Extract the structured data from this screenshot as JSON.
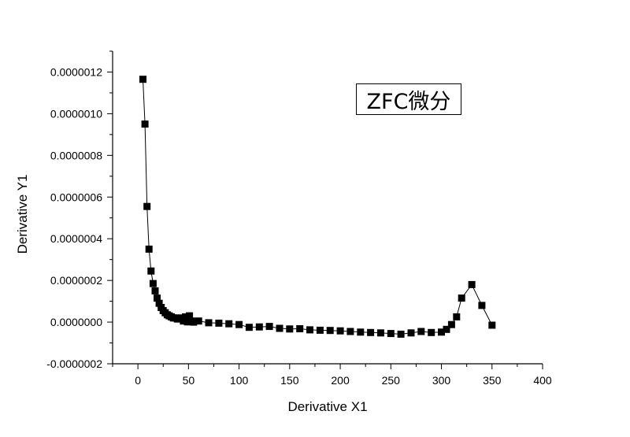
{
  "chart_data": {
    "type": "scatter",
    "title": "",
    "xlabel": "Derivative X1",
    "ylabel": "Derivative Y1",
    "xlim": [
      -25,
      400
    ],
    "ylim": [
      -2e-07,
      1.3e-06
    ],
    "grid": false,
    "x_ticks": [
      0,
      50,
      100,
      150,
      200,
      250,
      300,
      350,
      400
    ],
    "x_tick_labels": [
      "0",
      "50",
      "100",
      "150",
      "200",
      "250",
      "300",
      "350",
      "400"
    ],
    "y_ticks": [
      -2e-07,
      0,
      2e-07,
      4e-07,
      6e-07,
      8e-07,
      1e-06,
      1.2e-06
    ],
    "y_tick_labels": [
      "-0.0000002",
      "0.0000000",
      "0.0000002",
      "0.0000004",
      "0.0000006",
      "0.0000008",
      "0.0000010",
      "0.0000012"
    ],
    "annotation": "ZFC微分",
    "series": [
      {
        "marker": "square",
        "connected": true,
        "color": "#000000",
        "x": [
          5,
          7,
          9,
          11,
          13,
          15,
          17,
          19,
          21,
          23,
          25,
          27,
          29,
          31,
          33,
          35,
          37,
          39,
          41,
          43,
          45,
          47,
          49,
          51,
          53,
          55,
          60,
          70,
          80,
          90,
          100,
          110,
          120,
          130,
          140,
          150,
          160,
          170,
          180,
          190,
          200,
          210,
          220,
          230,
          240,
          250,
          260,
          270,
          280,
          290,
          300,
          305,
          310,
          315,
          320,
          330,
          340,
          350
        ],
        "y": [
          1.165e-06,
          9.5e-07,
          5.55e-07,
          3.5e-07,
          2.45e-07,
          1.85e-07,
          1.5e-07,
          1.15e-07,
          9e-08,
          7e-08,
          5.5e-08,
          4.5e-08,
          3.5e-08,
          3e-08,
          2.5e-08,
          2e-08,
          2e-08,
          1.5e-08,
          1.5e-08,
          2e-08,
          5e-09,
          2.5e-08,
          1e-09,
          3e-08,
          5e-09,
          0,
          5e-09,
          -3e-09,
          -5e-09,
          -8e-09,
          -1.2e-08,
          -2.5e-08,
          -2.3e-08,
          -2.1e-08,
          -3e-08,
          -3.3e-08,
          -3.2e-08,
          -3.7e-08,
          -3.9e-08,
          -4e-08,
          -4.2e-08,
          -4.5e-08,
          -4.8e-08,
          -5e-08,
          -5.2e-08,
          -5.5e-08,
          -5.8e-08,
          -5.2e-08,
          -4.5e-08,
          -5e-08,
          -4.8e-08,
          -3.5e-08,
          -1.2e-08,
          2.5e-08,
          1.15e-07,
          1.8e-07,
          8e-08,
          -1.5e-08
        ]
      }
    ]
  }
}
